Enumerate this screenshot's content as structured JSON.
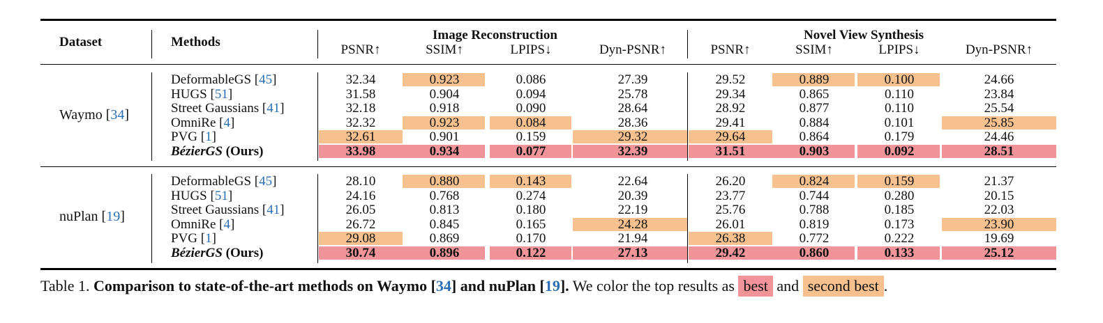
{
  "colors": {
    "best": "#f0949a",
    "second": "#f7c18f"
  },
  "header": {
    "dataset": "Dataset",
    "methods": "Methods",
    "group1": "Image Reconstruction",
    "group2": "Novel View Synthesis",
    "metrics": [
      "PSNR↑",
      "SSIM↑",
      "LPIPS↓",
      "Dyn-PSNR↑",
      "PSNR↑",
      "SSIM↑",
      "LPIPS↓",
      "Dyn-PSNR↑"
    ]
  },
  "blocks": [
    {
      "dataset_name": "Waymo [",
      "dataset_cite": "34",
      "dataset_close": "]",
      "rows": [
        {
          "name": "DeformableGS [",
          "cite": "45",
          "values": [
            "32.34",
            "0.923",
            "0.086",
            "27.39",
            "29.52",
            "0.889",
            "0.100",
            "24.66"
          ],
          "hl": [
            "",
            "second",
            "",
            "",
            "",
            "second",
            "second",
            ""
          ]
        },
        {
          "name": "HUGS [",
          "cite": "51",
          "values": [
            "31.58",
            "0.904",
            "0.094",
            "25.78",
            "29.34",
            "0.865",
            "0.110",
            "23.84"
          ],
          "hl": [
            "",
            "",
            "",
            "",
            "",
            "",
            "",
            ""
          ]
        },
        {
          "name": "Street Gaussians [",
          "cite": "41",
          "values": [
            "32.18",
            "0.918",
            "0.090",
            "28.64",
            "28.92",
            "0.877",
            "0.110",
            "25.54"
          ],
          "hl": [
            "",
            "",
            "",
            "",
            "",
            "",
            "",
            ""
          ]
        },
        {
          "name": "OmniRe [",
          "cite": "4",
          "values": [
            "32.32",
            "0.923",
            "0.084",
            "28.36",
            "29.41",
            "0.884",
            "0.101",
            "25.85"
          ],
          "hl": [
            "",
            "second",
            "second",
            "",
            "",
            "",
            "",
            "second"
          ]
        },
        {
          "name": "PVG [",
          "cite": "1",
          "values": [
            "32.61",
            "0.901",
            "0.159",
            "29.32",
            "29.64",
            "0.864",
            "0.179",
            "24.46"
          ],
          "hl": [
            "second",
            "",
            "",
            "second",
            "second",
            "",
            "",
            ""
          ]
        },
        {
          "ours": true,
          "name_italic": "BézierGS",
          "name_rest": " (Ours)",
          "values": [
            "33.98",
            "0.934",
            "0.077",
            "32.39",
            "31.51",
            "0.903",
            "0.092",
            "28.51"
          ],
          "hl": [
            "best",
            "best",
            "best",
            "best",
            "best",
            "best",
            "best",
            "best"
          ]
        }
      ]
    },
    {
      "dataset_name": "nuPlan [",
      "dataset_cite": "19",
      "dataset_close": "]",
      "rows": [
        {
          "name": "DeformableGS [",
          "cite": "45",
          "values": [
            "28.10",
            "0.880",
            "0.143",
            "22.64",
            "26.20",
            "0.824",
            "0.159",
            "21.37"
          ],
          "hl": [
            "",
            "second",
            "second",
            "",
            "",
            "second",
            "second",
            ""
          ]
        },
        {
          "name": "HUGS [",
          "cite": "51",
          "values": [
            "24.16",
            "0.768",
            "0.274",
            "20.39",
            "23.77",
            "0.744",
            "0.280",
            "20.15"
          ],
          "hl": [
            "",
            "",
            "",
            "",
            "",
            "",
            "",
            ""
          ]
        },
        {
          "name": "Street Gaussians [",
          "cite": "41",
          "values": [
            "26.05",
            "0.813",
            "0.180",
            "22.19",
            "25.76",
            "0.788",
            "0.185",
            "22.03"
          ],
          "hl": [
            "",
            "",
            "",
            "",
            "",
            "",
            "",
            ""
          ]
        },
        {
          "name": "OmniRe [",
          "cite": "4",
          "values": [
            "26.72",
            "0.845",
            "0.165",
            "24.28",
            "26.01",
            "0.819",
            "0.173",
            "23.90"
          ],
          "hl": [
            "",
            "",
            "",
            "second",
            "",
            "",
            "",
            "second"
          ]
        },
        {
          "name": "PVG [",
          "cite": "1",
          "values": [
            "29.08",
            "0.869",
            "0.170",
            "21.94",
            "26.38",
            "0.772",
            "0.222",
            "19.69"
          ],
          "hl": [
            "second",
            "",
            "",
            "",
            "second",
            "",
            "",
            ""
          ]
        },
        {
          "ours": true,
          "name_italic": "BézierGS",
          "name_rest": " (Ours)",
          "values": [
            "30.74",
            "0.896",
            "0.122",
            "27.13",
            "29.42",
            "0.860",
            "0.133",
            "25.12"
          ],
          "hl": [
            "best",
            "best",
            "best",
            "best",
            "best",
            "best",
            "best",
            "best"
          ]
        }
      ]
    }
  ],
  "caption": {
    "prefix": "Table 1. ",
    "bold_a": "Comparison to state-of-the-art methods on Waymo [",
    "cite_a": "34",
    "bold_b": "] and nuPlan [",
    "cite_b": "19",
    "bold_c": "].",
    "text_a": " We color the top results as ",
    "best_label": "best",
    "text_b": " and ",
    "second_label": "second best",
    "text_c": "."
  }
}
